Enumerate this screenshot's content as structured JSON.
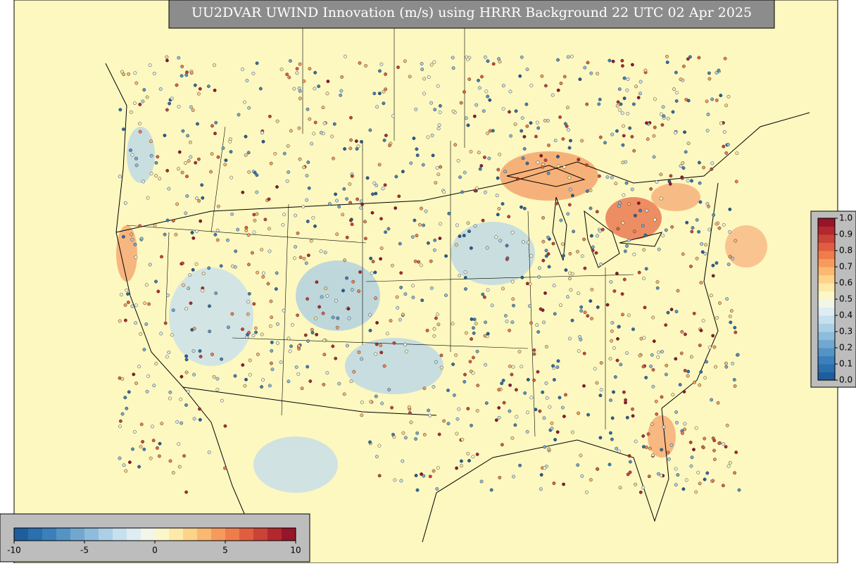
{
  "title": "UU2DVAR UWIND Innovation (m/s) using HRRR Background 22 UTC 02 Apr 2025",
  "colorbar": {
    "range": [
      -10,
      10
    ],
    "ticks": [
      -10,
      -5,
      0,
      5,
      10
    ],
    "colors": [
      "#1f5e9c",
      "#2a6fae",
      "#3b80ba",
      "#5593c5",
      "#72a8d0",
      "#8ebcdc",
      "#abd0e6",
      "#c6e0ee",
      "#ddedf2",
      "#f1f6e8",
      "#fbf7c8",
      "#fde9a8",
      "#fdd38a",
      "#fbb870",
      "#f79b5d",
      "#ef7d4c",
      "#e05e3f",
      "#cb4236",
      "#b3282e",
      "#961528"
    ]
  },
  "colorbar2": {
    "range": [
      0,
      1
    ],
    "ticks": [
      {
        "value": 0,
        "label": "0.0"
      },
      0.1,
      0.2,
      0.3,
      0.4,
      0.5,
      0.6,
      0.7,
      0.8,
      0.9,
      {
        "value": 1,
        "label": "1.0"
      }
    ],
    "colors": [
      "#1f5e9c",
      "#2a6fae",
      "#3b80ba",
      "#5593c5",
      "#72a8d0",
      "#8ebcdc",
      "#abd0e6",
      "#c6e0ee",
      "#ddedf2",
      "#f1f6e8",
      "#fbf7c8",
      "#fde9a8",
      "#fdd38a",
      "#fbb870",
      "#f79b5d",
      "#ef7d4c",
      "#e05e3f",
      "#cb4236",
      "#b3282e",
      "#961528"
    ]
  }
}
